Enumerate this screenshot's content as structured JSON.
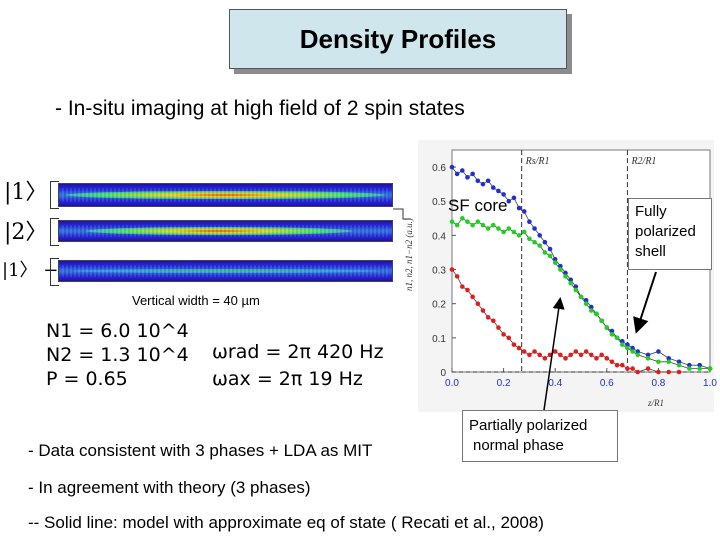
{
  "title": "Density Profiles",
  "subtitle": "- In-situ imaging at high field of 2 spin states",
  "kets": {
    "state1": "|1〉",
    "state2": "|2〉",
    "difference": "|1〉 − |2〉"
  },
  "vertical_width": "Vertical width = 40 µm",
  "params": {
    "n1": "N1 = 6.0 10^4",
    "n2": "N2 = 1.3 10^4",
    "p": "P = 0.65",
    "wrad": "ωrad = 2π 420 Hz",
    "wax": "ωax = 2π 19 Hz"
  },
  "sf_core": "SF core",
  "fully_polarized": [
    "Fully",
    "polarized",
    "shell"
  ],
  "partially_polarized": [
    "Partially polarized",
    "normal phase"
  ],
  "bullets": {
    "b1": "- Data consistent with 3 phases + LDA as MIT",
    "b2": "-  In agreement with theory (3 phases)",
    "b3": "-- Solid line:  model with approximate eq of state ( Recati et al., 2008)"
  },
  "chart_data": {
    "type": "scatter",
    "xlabel": "z/R1",
    "ylabel": "n1, n2, n1−n2 (a.u.)",
    "xlim": [
      0.0,
      1.0
    ],
    "ylim": [
      0.0,
      0.65
    ],
    "xticks": [
      "0.0",
      "0.2",
      "0.4",
      "0.6",
      "0.8",
      "1.0"
    ],
    "yticks": [
      "0",
      "0.1",
      "0.2",
      "0.3",
      "0.4",
      "0.5",
      "0.6"
    ],
    "vlines": [
      {
        "x": 0.27,
        "label": "Rs/R1"
      },
      {
        "x": 0.68,
        "label": "R2/R1"
      }
    ],
    "hlines": [
      {
        "y": 0.0
      }
    ],
    "series": [
      {
        "color": "#1f2fd0",
        "values": [
          [
            0.0,
            0.6
          ],
          [
            0.02,
            0.58
          ],
          [
            0.04,
            0.59
          ],
          [
            0.06,
            0.57
          ],
          [
            0.08,
            0.58
          ],
          [
            0.1,
            0.56
          ],
          [
            0.12,
            0.55
          ],
          [
            0.14,
            0.56
          ],
          [
            0.16,
            0.54
          ],
          [
            0.18,
            0.53
          ],
          [
            0.2,
            0.52
          ],
          [
            0.22,
            0.5
          ],
          [
            0.24,
            0.51
          ],
          [
            0.26,
            0.48
          ],
          [
            0.28,
            0.47
          ],
          [
            0.3,
            0.44
          ],
          [
            0.32,
            0.42
          ],
          [
            0.34,
            0.4
          ],
          [
            0.36,
            0.38
          ],
          [
            0.38,
            0.36
          ],
          [
            0.4,
            0.33
          ],
          [
            0.42,
            0.31
          ],
          [
            0.44,
            0.29
          ],
          [
            0.46,
            0.27
          ],
          [
            0.48,
            0.25
          ],
          [
            0.5,
            0.22
          ],
          [
            0.52,
            0.21
          ],
          [
            0.54,
            0.19
          ],
          [
            0.56,
            0.17
          ],
          [
            0.58,
            0.15
          ],
          [
            0.6,
            0.13
          ],
          [
            0.62,
            0.12
          ],
          [
            0.64,
            0.1
          ],
          [
            0.66,
            0.09
          ],
          [
            0.68,
            0.08
          ],
          [
            0.7,
            0.07
          ],
          [
            0.72,
            0.06
          ],
          [
            0.76,
            0.05
          ],
          [
            0.8,
            0.06
          ],
          [
            0.84,
            0.04
          ],
          [
            0.88,
            0.03
          ],
          [
            0.92,
            0.02
          ],
          [
            0.96,
            0.02
          ],
          [
            1.0,
            0.01
          ]
        ]
      },
      {
        "color": "#1fd01f",
        "values": [
          [
            0.0,
            0.44
          ],
          [
            0.02,
            0.43
          ],
          [
            0.04,
            0.45
          ],
          [
            0.06,
            0.44
          ],
          [
            0.08,
            0.43
          ],
          [
            0.1,
            0.44
          ],
          [
            0.12,
            0.43
          ],
          [
            0.14,
            0.42
          ],
          [
            0.16,
            0.43
          ],
          [
            0.18,
            0.42
          ],
          [
            0.2,
            0.41
          ],
          [
            0.22,
            0.42
          ],
          [
            0.24,
            0.41
          ],
          [
            0.26,
            0.4
          ],
          [
            0.28,
            0.41
          ],
          [
            0.3,
            0.39
          ],
          [
            0.32,
            0.38
          ],
          [
            0.34,
            0.37
          ],
          [
            0.36,
            0.35
          ],
          [
            0.38,
            0.34
          ],
          [
            0.4,
            0.32
          ],
          [
            0.42,
            0.3
          ],
          [
            0.44,
            0.28
          ],
          [
            0.46,
            0.26
          ],
          [
            0.48,
            0.24
          ],
          [
            0.5,
            0.22
          ],
          [
            0.52,
            0.2
          ],
          [
            0.54,
            0.18
          ],
          [
            0.56,
            0.17
          ],
          [
            0.58,
            0.15
          ],
          [
            0.6,
            0.13
          ],
          [
            0.62,
            0.11
          ],
          [
            0.64,
            0.1
          ],
          [
            0.66,
            0.08
          ],
          [
            0.68,
            0.07
          ],
          [
            0.7,
            0.06
          ],
          [
            0.72,
            0.05
          ],
          [
            0.76,
            0.04
          ],
          [
            0.8,
            0.03
          ],
          [
            0.84,
            0.03
          ],
          [
            0.88,
            0.02
          ],
          [
            0.92,
            0.01
          ],
          [
            0.96,
            0.01
          ],
          [
            1.0,
            0.01
          ]
        ]
      },
      {
        "color": "#e01c1c",
        "values": [
          [
            0.0,
            0.3
          ],
          [
            0.02,
            0.28
          ],
          [
            0.04,
            0.25
          ],
          [
            0.06,
            0.24
          ],
          [
            0.08,
            0.22
          ],
          [
            0.1,
            0.2
          ],
          [
            0.12,
            0.18
          ],
          [
            0.14,
            0.16
          ],
          [
            0.16,
            0.15
          ],
          [
            0.18,
            0.13
          ],
          [
            0.2,
            0.11
          ],
          [
            0.22,
            0.1
          ],
          [
            0.24,
            0.08
          ],
          [
            0.26,
            0.07
          ],
          [
            0.28,
            0.06
          ],
          [
            0.3,
            0.05
          ],
          [
            0.32,
            0.06
          ],
          [
            0.34,
            0.05
          ],
          [
            0.36,
            0.04
          ],
          [
            0.38,
            0.05
          ],
          [
            0.4,
            0.06
          ],
          [
            0.42,
            0.05
          ],
          [
            0.44,
            0.04
          ],
          [
            0.46,
            0.05
          ],
          [
            0.48,
            0.06
          ],
          [
            0.5,
            0.05
          ],
          [
            0.52,
            0.06
          ],
          [
            0.54,
            0.05
          ],
          [
            0.56,
            0.04
          ],
          [
            0.58,
            0.05
          ],
          [
            0.6,
            0.04
          ],
          [
            0.62,
            0.03
          ],
          [
            0.64,
            0.02
          ],
          [
            0.66,
            0.02
          ],
          [
            0.68,
            0.01
          ],
          [
            0.7,
            0.01
          ],
          [
            0.72,
            0.0
          ],
          [
            0.76,
            0.01
          ],
          [
            0.8,
            0.0
          ],
          [
            0.84,
            0.0
          ],
          [
            0.88,
            0.0
          ]
        ]
      }
    ],
    "grid": false,
    "legend": "none"
  }
}
